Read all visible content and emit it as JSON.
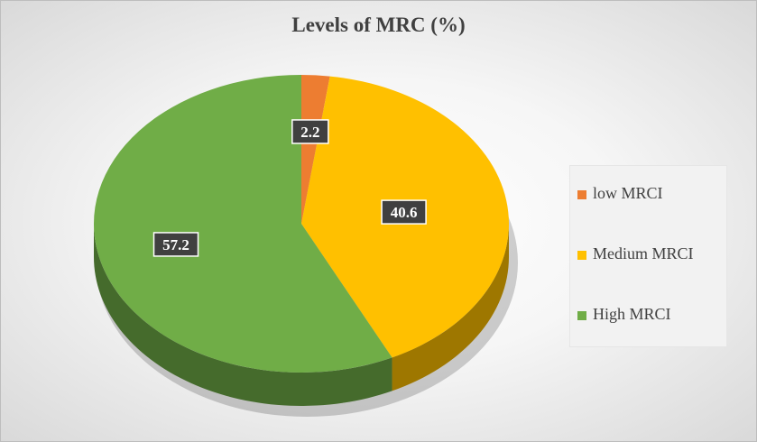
{
  "chart_data": {
    "type": "pie",
    "title": "Levels of MRC (%)",
    "categories": [
      "low MRCI",
      "Medium MRCI",
      "High MRCI"
    ],
    "values": [
      2.2,
      40.6,
      57.2
    ],
    "colors": [
      "#ed7d31",
      "#ffc000",
      "#70ad47"
    ],
    "data_labels": [
      "2.2",
      "40.6",
      "57.2"
    ],
    "legend_position": "right"
  }
}
